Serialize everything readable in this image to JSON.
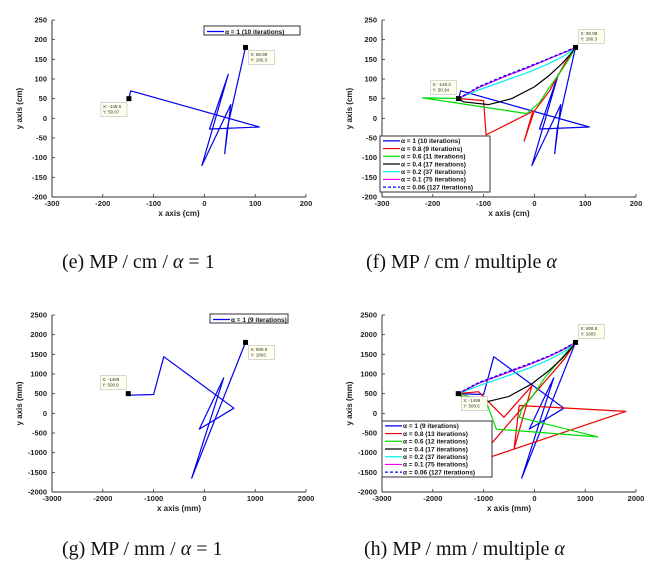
{
  "captions": [
    {
      "prefix": "(e) MP / cm / ",
      "greek": "α",
      "suffix": " = 1"
    },
    {
      "prefix": "(f) MP / cm / multiple ",
      "greek": "α",
      "suffix": ""
    },
    {
      "prefix": "(g) MP / mm / ",
      "greek": "α",
      "suffix": " = 1"
    },
    {
      "prefix": "(h) MP / mm / multiple ",
      "greek": "α",
      "suffix": ""
    }
  ],
  "colors": {
    "alpha_1": "#0000ee",
    "alpha_0.8": "#ee0000",
    "alpha_0.6": "#00dd00",
    "alpha_0.4": "#000000",
    "alpha_0.2": "#00eeee",
    "alpha_0.1": "#ee00ee",
    "alpha_0.06": "#0000ee"
  },
  "chart_data": [
    {
      "id": "e",
      "type": "line",
      "xlabel": "x axis (cm)",
      "ylabel": "y axis (cm)",
      "xlim": [
        -300,
        200
      ],
      "ylim": [
        -200,
        250
      ],
      "xticks": [
        -300,
        -200,
        -100,
        0,
        100,
        200
      ],
      "yticks": [
        -200,
        -150,
        -100,
        -50,
        0,
        50,
        100,
        150,
        200,
        250
      ],
      "grid": false,
      "legend_position": "top-right",
      "annotations": [
        {
          "x": -148.6,
          "y": 50.07,
          "text": [
            "X: -148.6",
            "Y: 50.07"
          ],
          "side": "below-left"
        },
        {
          "x": 80.98,
          "y": 180.3,
          "text": [
            "X: 80.98",
            "Y: 180.3"
          ],
          "side": "below-right"
        }
      ],
      "series": [
        {
          "name": "α = 1 (10 iterations)",
          "color_key": "alpha_1",
          "dashed": false,
          "points": [
            [
              -148.6,
              50.07
            ],
            [
              -145,
              70
            ],
            [
              108,
              -22
            ],
            [
              10,
              -27
            ],
            [
              47,
              112
            ],
            [
              -5,
              -120
            ],
            [
              52,
              35
            ],
            [
              40,
              -90
            ],
            [
              45,
              -25
            ],
            [
              80.98,
              180.3
            ]
          ]
        }
      ]
    },
    {
      "id": "f",
      "type": "line",
      "xlabel": "x axis (cm)",
      "ylabel": "y axis (cm)",
      "xlim": [
        -300,
        200
      ],
      "ylim": [
        -200,
        250
      ],
      "xticks": [
        -300,
        -200,
        -100,
        0,
        100,
        200
      ],
      "yticks": [
        -200,
        -150,
        -100,
        -50,
        0,
        50,
        100,
        150,
        200,
        250
      ],
      "grid": false,
      "legend_position": "bottom-left",
      "annotations": [
        {
          "x": -149.3,
          "y": 50.34,
          "text": [
            "X: -149.3",
            "Y: 50.34"
          ],
          "side": "above-left"
        },
        {
          "x": 80.98,
          "y": 180.3,
          "text": [
            "X: 80.98",
            "Y: 180.3"
          ],
          "side": "above-right"
        }
      ],
      "series": [
        {
          "name": "α = 1 (10 iterations)",
          "color_key": "alpha_1",
          "dashed": false,
          "points": [
            [
              -149.3,
              50.34
            ],
            [
              -145,
              70
            ],
            [
              108,
              -22
            ],
            [
              10,
              -27
            ],
            [
              47,
              112
            ],
            [
              -5,
              -120
            ],
            [
              52,
              35
            ],
            [
              40,
              -90
            ],
            [
              45,
              -25
            ],
            [
              80.98,
              180.3
            ]
          ]
        },
        {
          "name": "α = 0.8 (9 iterations)",
          "color_key": "alpha_0.8",
          "dashed": false,
          "points": [
            [
              -149.3,
              50.34
            ],
            [
              -100,
              45
            ],
            [
              -95,
              -42
            ],
            [
              0,
              20
            ],
            [
              -20,
              -58
            ],
            [
              -5,
              10
            ],
            [
              30,
              70
            ],
            [
              60,
              140
            ],
            [
              80.98,
              180.3
            ]
          ]
        },
        {
          "name": "α = 0.6 (11 iterations)",
          "color_key": "alpha_0.6",
          "dashed": false,
          "points": [
            [
              -149.3,
              50.34
            ],
            [
              -220,
              52
            ],
            [
              -15,
              12
            ],
            [
              10,
              40
            ],
            [
              30,
              80
            ],
            [
              50,
              115
            ],
            [
              70,
              155
            ],
            [
              80.98,
              180.3
            ]
          ]
        },
        {
          "name": "α = 0.4 (17 iterations)",
          "color_key": "alpha_0.4",
          "dashed": false,
          "points": [
            [
              -149.3,
              50.34
            ],
            [
              -140,
              42
            ],
            [
              -90,
              35
            ],
            [
              -45,
              50
            ],
            [
              0,
              80
            ],
            [
              30,
              110
            ],
            [
              55,
              140
            ],
            [
              70,
              162
            ],
            [
              80.98,
              180.3
            ]
          ]
        },
        {
          "name": "α = 0.2 (37 iterations)",
          "color_key": "alpha_0.2",
          "dashed": false,
          "points": [
            [
              -149.3,
              50.34
            ],
            [
              -110,
              72
            ],
            [
              -60,
              95
            ],
            [
              -10,
              118
            ],
            [
              30,
              140
            ],
            [
              60,
              160
            ],
            [
              80.98,
              180.3
            ]
          ]
        },
        {
          "name": "α = 0.1 (75 iterations)",
          "color_key": "alpha_0.1",
          "dashed": false,
          "points": [
            [
              -149.3,
              50.34
            ],
            [
              -110,
              78
            ],
            [
              -60,
              105
            ],
            [
              -10,
              130
            ],
            [
              30,
              152
            ],
            [
              60,
              168
            ],
            [
              80.98,
              180.3
            ]
          ]
        },
        {
          "name": "α = 0.06 (127 iterations)",
          "color_key": "alpha_0.06",
          "dashed": true,
          "points": [
            [
              -149.3,
              50.34
            ],
            [
              -110,
              80
            ],
            [
              -60,
              107
            ],
            [
              -10,
              132
            ],
            [
              30,
              153
            ],
            [
              60,
              169
            ],
            [
              80.98,
              180.3
            ]
          ]
        }
      ]
    },
    {
      "id": "g",
      "type": "line",
      "xlabel": "x axis (mm)",
      "ylabel": "y axis (mm)",
      "xlim": [
        -3000,
        2000
      ],
      "ylim": [
        -2000,
        2500
      ],
      "xticks": [
        -3000,
        -2000,
        -1000,
        0,
        1000,
        2000
      ],
      "yticks": [
        -2000,
        -1500,
        -1000,
        -500,
        0,
        500,
        1000,
        1500,
        2000,
        2500
      ],
      "grid": false,
      "legend_position": "top-right",
      "annotations": [
        {
          "x": -1499,
          "y": 500.9,
          "text": [
            "X: -1499",
            "Y: 500.9"
          ],
          "side": "above-left"
        },
        {
          "x": 809.8,
          "y": 1803,
          "text": [
            "X: 809.8",
            "Y: 1803"
          ],
          "side": "below-right"
        }
      ],
      "series": [
        {
          "name": "α = 1 (9 iterations)",
          "color_key": "alpha_1",
          "dashed": false,
          "points": [
            [
              -1499,
              500.9
            ],
            [
              -1480,
              460
            ],
            [
              -1000,
              480
            ],
            [
              -800,
              1440
            ],
            [
              580,
              130
            ],
            [
              -100,
              -400
            ],
            [
              380,
              900
            ],
            [
              -250,
              -1650
            ],
            [
              809.8,
              1803
            ]
          ]
        }
      ]
    },
    {
      "id": "h",
      "type": "line",
      "xlabel": "x axis (mm)",
      "ylabel": "y axis (mm)",
      "xlim": [
        -3000,
        2000
      ],
      "ylim": [
        -2000,
        2500
      ],
      "xticks": [
        -3000,
        -2000,
        -1000,
        0,
        1000,
        2000
      ],
      "yticks": [
        -2000,
        -1500,
        -1000,
        -500,
        0,
        500,
        1000,
        1500,
        2000,
        2500
      ],
      "grid": false,
      "legend_position": "bottom-left",
      "annotations": [
        {
          "x": -1499,
          "y": 500.5,
          "text": [
            "X: -1499",
            "Y: 500.5"
          ],
          "side": "below-right"
        },
        {
          "x": 809.8,
          "y": 1803,
          "text": [
            "X: 809.8",
            "Y: 1803"
          ],
          "side": "above-right"
        }
      ],
      "series": [
        {
          "name": "α = 1 (9 iterations)",
          "color_key": "alpha_1",
          "dashed": false,
          "points": [
            [
              -1499,
              500.5
            ],
            [
              -1000,
              480
            ],
            [
              -800,
              1440
            ],
            [
              580,
              130
            ],
            [
              -100,
              -400
            ],
            [
              380,
              900
            ],
            [
              -250,
              -1650
            ],
            [
              809.8,
              1803
            ]
          ]
        },
        {
          "name": "α = 0.8 (13 iterations)",
          "color_key": "alpha_0.8",
          "dashed": false,
          "points": [
            [
              -1499,
              500.5
            ],
            [
              -1100,
              550
            ],
            [
              -600,
              -100
            ],
            [
              -50,
              700
            ],
            [
              -400,
              -900
            ],
            [
              -300,
              200
            ],
            [
              1800,
              50
            ],
            [
              -1300,
              -1300
            ],
            [
              -1000,
              -1000
            ],
            [
              -200,
              200
            ],
            [
              200,
              800
            ],
            [
              600,
              1400
            ],
            [
              809.8,
              1803
            ]
          ]
        },
        {
          "name": "α = 0.6 (12 iterations)",
          "color_key": "alpha_0.6",
          "dashed": false,
          "points": [
            [
              -1499,
              500.5
            ],
            [
              -950,
              300
            ],
            [
              -750,
              -400
            ],
            [
              1250,
              -600
            ],
            [
              -300,
              -100
            ],
            [
              -250,
              100
            ],
            [
              0,
              500
            ],
            [
              200,
              900
            ],
            [
              400,
              1200
            ],
            [
              600,
              1500
            ],
            [
              809.8,
              1803
            ]
          ]
        },
        {
          "name": "α = 0.4 (17 iterations)",
          "color_key": "alpha_0.4",
          "dashed": false,
          "points": [
            [
              -1499,
              500.5
            ],
            [
              -1400,
              400
            ],
            [
              -950,
              290
            ],
            [
              -500,
              430
            ],
            [
              -50,
              750
            ],
            [
              300,
              1100
            ],
            [
              550,
              1400
            ],
            [
              720,
              1650
            ],
            [
              809.8,
              1803
            ]
          ]
        },
        {
          "name": "α = 0.2 (37 iterations)",
          "color_key": "alpha_0.2",
          "dashed": false,
          "points": [
            [
              -1499,
              500.5
            ],
            [
              -1100,
              700
            ],
            [
              -600,
              920
            ],
            [
              -100,
              1150
            ],
            [
              300,
              1370
            ],
            [
              600,
              1580
            ],
            [
              809.8,
              1803
            ]
          ]
        },
        {
          "name": "α = 0.1 (75 iterations)",
          "color_key": "alpha_0.1",
          "dashed": false,
          "points": [
            [
              -1499,
              500.5
            ],
            [
              -1100,
              760
            ],
            [
              -600,
              1000
            ],
            [
              -100,
              1240
            ],
            [
              300,
              1450
            ],
            [
              600,
              1640
            ],
            [
              809.8,
              1803
            ]
          ]
        },
        {
          "name": "α = 0.06 (127 iterations)",
          "color_key": "alpha_0.06",
          "dashed": true,
          "points": [
            [
              -1499,
              500.5
            ],
            [
              -1100,
              780
            ],
            [
              -600,
              1020
            ],
            [
              -100,
              1260
            ],
            [
              300,
              1460
            ],
            [
              600,
              1650
            ],
            [
              809.8,
              1803
            ]
          ]
        }
      ]
    }
  ]
}
